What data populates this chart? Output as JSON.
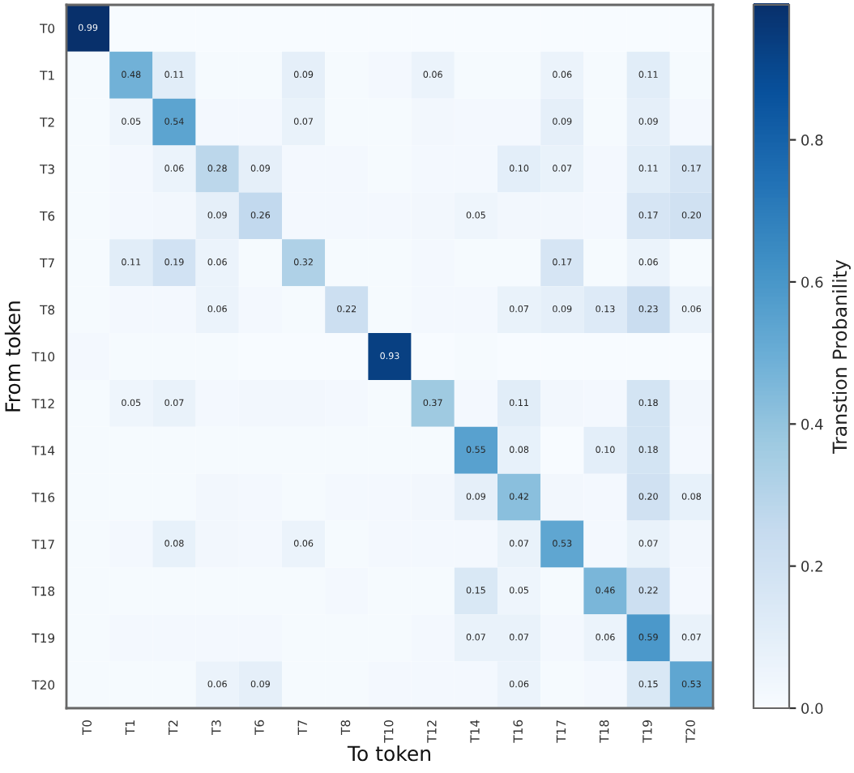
{
  "chart_data": {
    "type": "heatmap",
    "xlabel": "To token",
    "ylabel": "From token",
    "clabel": "Transtion Probanility",
    "categories": [
      "T0",
      "T1",
      "T2",
      "T3",
      "T6",
      "T7",
      "T8",
      "T10",
      "T12",
      "T14",
      "T16",
      "T17",
      "T18",
      "T19",
      "T20"
    ],
    "y_categories": [
      "T0",
      "T1",
      "T2",
      "T3",
      "T6",
      "T7",
      "T8",
      "T10",
      "T12",
      "T14",
      "T16",
      "T17",
      "T18",
      "T19",
      "T20"
    ],
    "cells": [
      [
        0.99,
        0,
        0,
        0,
        0,
        0,
        0,
        0,
        0,
        0,
        0,
        0,
        0,
        0,
        0
      ],
      [
        0.01,
        0.48,
        0.11,
        0.01,
        0.01,
        0.09,
        0.01,
        0.02,
        0.06,
        0.01,
        0.01,
        0.06,
        0.01,
        0.11,
        0.01
      ],
      [
        0.01,
        0.05,
        0.54,
        0.02,
        0.02,
        0.07,
        0.01,
        0.01,
        0.03,
        0.02,
        0.02,
        0.09,
        0.01,
        0.09,
        0.02
      ],
      [
        0.01,
        0.02,
        0.06,
        0.28,
        0.09,
        0.02,
        0.02,
        0.01,
        0.02,
        0.02,
        0.1,
        0.07,
        0.02,
        0.11,
        0.17
      ],
      [
        0.01,
        0.02,
        0.03,
        0.09,
        0.26,
        0.02,
        0.02,
        0.02,
        0.03,
        0.05,
        0.03,
        0.03,
        0.02,
        0.17,
        0.2
      ],
      [
        0.01,
        0.11,
        0.19,
        0.06,
        0.01,
        0.32,
        0.01,
        0.01,
        0.02,
        0.01,
        0.01,
        0.17,
        0.01,
        0.06,
        0.01
      ],
      [
        0.01,
        0.02,
        0.02,
        0.06,
        0.02,
        0.01,
        0.22,
        0.01,
        0.02,
        0.02,
        0.07,
        0.09,
        0.13,
        0.23,
        0.06
      ],
      [
        0.02,
        0.01,
        0.01,
        0.01,
        0,
        0,
        0,
        0.93,
        0,
        0.01,
        0,
        0,
        0,
        0,
        0
      ],
      [
        0.01,
        0.05,
        0.07,
        0.02,
        0.03,
        0.03,
        0.02,
        0.01,
        0.37,
        0.02,
        0.11,
        0.03,
        0.02,
        0.18,
        0.03
      ],
      [
        0.01,
        0.01,
        0.01,
        0.01,
        0.01,
        0.01,
        0.01,
        0.01,
        0.01,
        0.55,
        0.08,
        0,
        0.1,
        0.18,
        0.02
      ],
      [
        0.01,
        0.01,
        0.01,
        0.03,
        0.02,
        0.01,
        0.02,
        0.02,
        0.03,
        0.09,
        0.42,
        0.03,
        0.02,
        0.2,
        0.08
      ],
      [
        0.01,
        0.02,
        0.08,
        0.03,
        0.02,
        0.06,
        0.01,
        0.02,
        0.02,
        0.02,
        0.07,
        0.53,
        0.02,
        0.07,
        0.03
      ],
      [
        0.01,
        0.01,
        0.01,
        0.01,
        0.01,
        0.01,
        0.02,
        0.01,
        0.01,
        0.15,
        0.05,
        0.01,
        0.46,
        0.22,
        0.02
      ],
      [
        0.01,
        0.02,
        0.02,
        0.02,
        0.02,
        0.01,
        0.01,
        0.01,
        0.02,
        0.07,
        0.07,
        0.02,
        0.06,
        0.59,
        0.07
      ],
      [
        0.01,
        0.01,
        0.01,
        0.06,
        0.09,
        0.01,
        0.01,
        0.02,
        0.02,
        0.02,
        0.06,
        0.01,
        0.02,
        0.15,
        0.53
      ]
    ],
    "cell_labels": [
      [
        "0.99",
        null,
        null,
        null,
        null,
        null,
        null,
        null,
        null,
        null,
        null,
        null,
        null,
        null,
        null
      ],
      [
        null,
        "0.48",
        "0.11",
        null,
        null,
        "0.09",
        null,
        null,
        "0.06",
        null,
        null,
        "0.06",
        null,
        "0.11",
        null
      ],
      [
        null,
        "0.05",
        "0.54",
        null,
        null,
        "0.07",
        null,
        null,
        null,
        null,
        null,
        "0.09",
        null,
        "0.09",
        null
      ],
      [
        null,
        null,
        "0.06",
        "0.28",
        "0.09",
        null,
        null,
        null,
        null,
        null,
        "0.10",
        "0.07",
        null,
        "0.11",
        "0.17"
      ],
      [
        null,
        null,
        null,
        "0.09",
        "0.26",
        null,
        null,
        null,
        null,
        "0.05",
        null,
        null,
        null,
        "0.17",
        "0.20"
      ],
      [
        null,
        "0.11",
        "0.19",
        "0.06",
        null,
        "0.32",
        null,
        null,
        null,
        null,
        null,
        "0.17",
        null,
        "0.06",
        null
      ],
      [
        null,
        null,
        null,
        "0.06",
        null,
        null,
        "0.22",
        null,
        null,
        null,
        "0.07",
        "0.09",
        "0.13",
        "0.23",
        "0.06"
      ],
      [
        null,
        null,
        null,
        null,
        null,
        null,
        null,
        "0.93",
        null,
        null,
        null,
        null,
        null,
        null,
        null
      ],
      [
        null,
        "0.05",
        "0.07",
        null,
        null,
        null,
        null,
        null,
        "0.37",
        null,
        "0.11",
        null,
        null,
        "0.18",
        null
      ],
      [
        null,
        null,
        null,
        null,
        null,
        null,
        null,
        null,
        null,
        "0.55",
        "0.08",
        null,
        "0.10",
        "0.18",
        null
      ],
      [
        null,
        null,
        null,
        null,
        null,
        null,
        null,
        null,
        null,
        "0.09",
        "0.42",
        null,
        null,
        "0.20",
        "0.08"
      ],
      [
        null,
        null,
        "0.08",
        null,
        null,
        "0.06",
        null,
        null,
        null,
        null,
        "0.07",
        "0.53",
        null,
        "0.07",
        null
      ],
      [
        null,
        null,
        null,
        null,
        null,
        null,
        null,
        null,
        null,
        "0.15",
        "0.05",
        null,
        "0.46",
        "0.22",
        null
      ],
      [
        null,
        null,
        null,
        null,
        null,
        null,
        null,
        null,
        null,
        "0.07",
        "0.07",
        null,
        "0.06",
        "0.59",
        "0.07"
      ],
      [
        null,
        null,
        null,
        "0.06",
        "0.09",
        null,
        null,
        null,
        null,
        null,
        "0.06",
        null,
        null,
        "0.15",
        "0.53"
      ]
    ],
    "clim": [
      0,
      0.99
    ],
    "cticks": [
      {
        "value": 0,
        "label": "0.0"
      },
      0.2,
      0.4,
      0.6,
      0.8
    ]
  }
}
